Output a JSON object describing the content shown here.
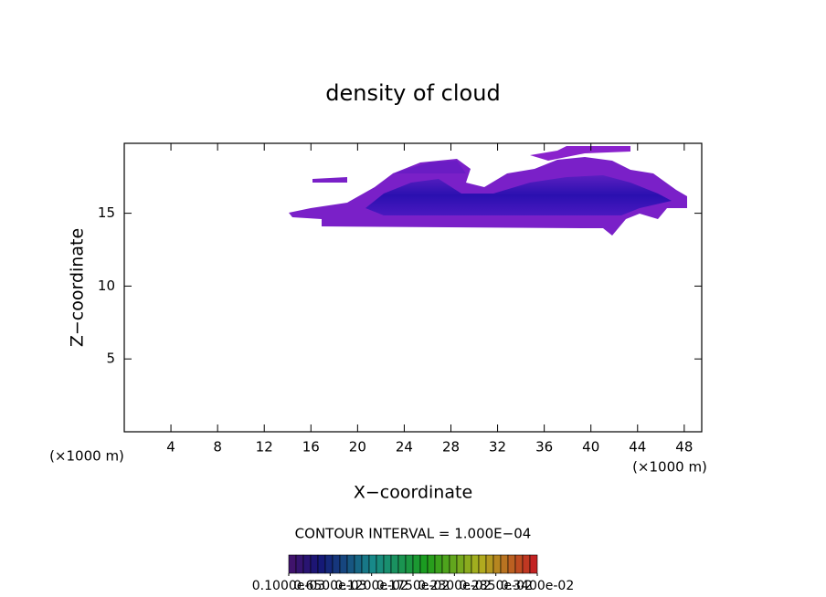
{
  "chart_data": {
    "type": "contour",
    "title": "density of cloud",
    "x_label": "X−coordinate",
    "y_label": "Z−coordinate",
    "x_unit_left": "(×1000 m)",
    "x_unit_right": "(×1000 m)",
    "contour_interval_text": "CONTOUR INTERVAL = 1.000E−04",
    "xlim": [
      0,
      49.5
    ],
    "ylim": [
      0,
      19.8
    ],
    "xticks": [
      4,
      8,
      12,
      16,
      20,
      24,
      28,
      32,
      36,
      40,
      44,
      48
    ],
    "yticks": [
      5,
      10,
      15
    ],
    "colorbar_lim": [
      0.0001,
      0.0034
    ],
    "colorbar_ticks": [
      {
        "value": 0.0001,
        "label": "0.1000e-03"
      },
      {
        "value": 0.00065,
        "label": "0.6500e-03"
      },
      {
        "value": 0.0012,
        "label": "0.1200e-02"
      },
      {
        "value": 0.00175,
        "label": "0.1750e-02"
      },
      {
        "value": 0.0023,
        "label": "0.2300e-02"
      },
      {
        "value": 0.00285,
        "label": "0.2850e-02"
      },
      {
        "value": 0.0034,
        "label": "0.3400e-02"
      }
    ]
  }
}
